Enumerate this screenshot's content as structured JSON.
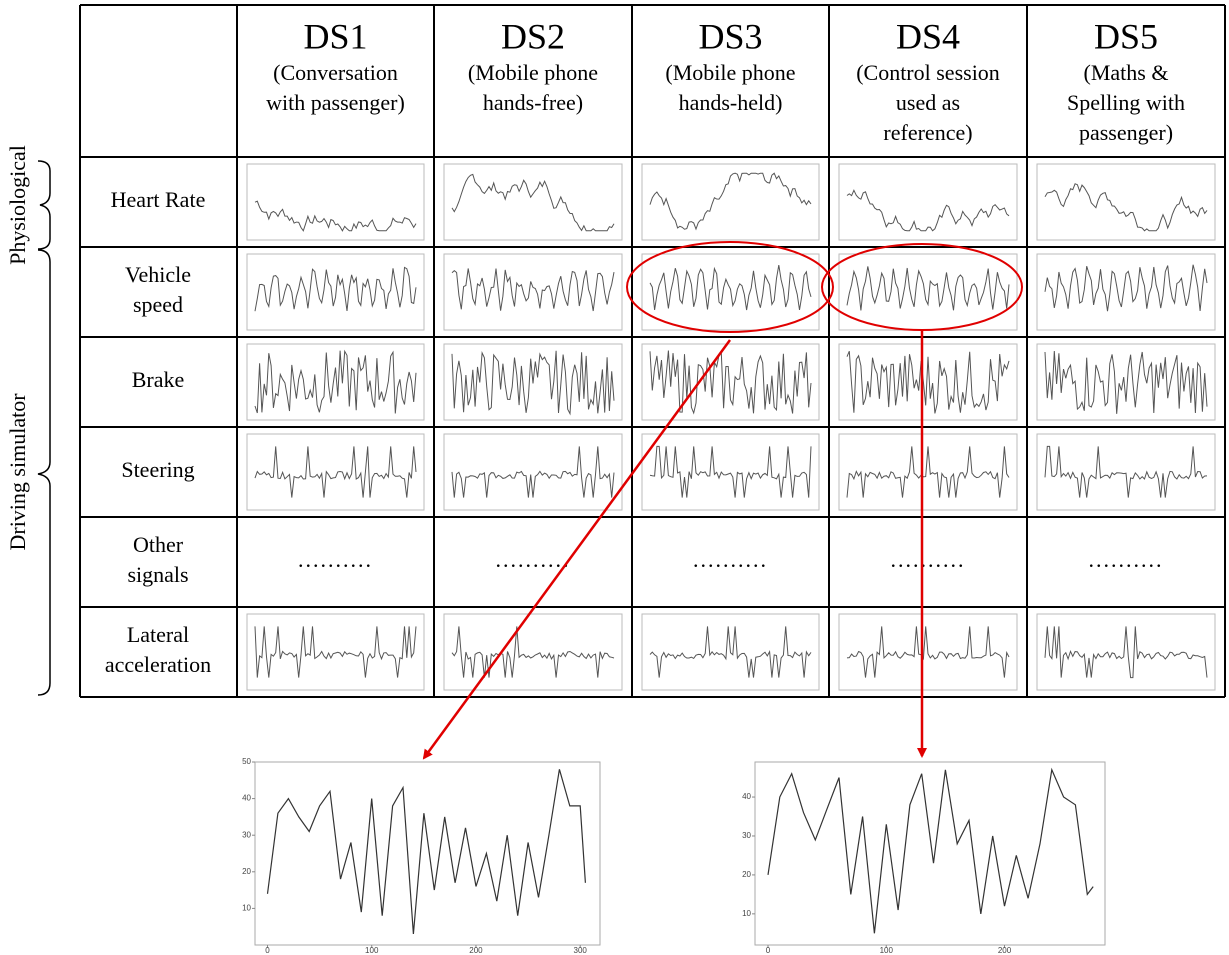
{
  "header": {
    "columns": [
      {
        "title": "DS1",
        "subtitle_lines": [
          "(Conversation",
          "with passenger)"
        ]
      },
      {
        "title": "DS2",
        "subtitle_lines": [
          "(Mobile phone",
          "hands-free)"
        ]
      },
      {
        "title": "DS3",
        "subtitle_lines": [
          "(Mobile phone",
          "hands-held)"
        ]
      },
      {
        "title": "DS4",
        "subtitle_lines": [
          "(Control session",
          "used as",
          "reference)"
        ]
      },
      {
        "title": "DS5",
        "subtitle_lines": [
          "(Maths &",
          "Spelling with",
          "passenger)"
        ]
      }
    ]
  },
  "groups": [
    "Physiological",
    "Driving simulator"
  ],
  "rows": [
    {
      "label_lines": [
        "Heart Rate"
      ]
    },
    {
      "label_lines": [
        "Vehicle",
        "speed"
      ]
    },
    {
      "label_lines": [
        "Brake"
      ]
    },
    {
      "label_lines": [
        "Steering"
      ]
    },
    {
      "label_lines": [
        "Other",
        "signals"
      ],
      "placeholder": ".........."
    },
    {
      "label_lines": [
        "Lateral",
        "acceleration"
      ]
    }
  ],
  "chart_data": [
    {
      "type": "line",
      "x": [
        0,
        10,
        20,
        30,
        40,
        50,
        60,
        70,
        80,
        90,
        100,
        110,
        120,
        130,
        140,
        150,
        160,
        170,
        180,
        190,
        200,
        210,
        220,
        230,
        240,
        250,
        260,
        270,
        280,
        290,
        300,
        305
      ],
      "series": [
        {
          "color": "#333333",
          "values": [
            14,
            36,
            40,
            35,
            31,
            38,
            42,
            18,
            28,
            9,
            40,
            8,
            38,
            43,
            3,
            36,
            15,
            35,
            17,
            32,
            16,
            25,
            12,
            30,
            8,
            28,
            13,
            30,
            48,
            38,
            38,
            17
          ]
        }
      ],
      "xlim": [
        -12,
        319
      ],
      "ylim": [
        0,
        50
      ],
      "xticks": [
        0,
        100,
        200,
        300
      ],
      "yticks": [
        10,
        20,
        30,
        40,
        50
      ]
    },
    {
      "type": "line",
      "x": [
        0,
        10,
        20,
        30,
        40,
        50,
        60,
        70,
        80,
        90,
        100,
        110,
        120,
        130,
        140,
        150,
        160,
        170,
        180,
        190,
        200,
        210,
        220,
        230,
        240,
        250,
        260,
        270,
        275
      ],
      "series": [
        {
          "color": "#333333",
          "values": [
            20,
            40,
            46,
            36,
            29,
            37,
            45,
            15,
            35,
            5,
            33,
            11,
            38,
            46,
            23,
            47,
            28,
            34,
            10,
            30,
            12,
            25,
            14,
            28,
            47,
            40,
            38,
            15,
            17
          ]
        }
      ],
      "xlim": [
        -11,
        285
      ],
      "ylim": [
        2,
        49
      ],
      "xticks": [
        0,
        100,
        200
      ],
      "yticks": [
        10,
        20,
        30,
        40
      ]
    }
  ]
}
